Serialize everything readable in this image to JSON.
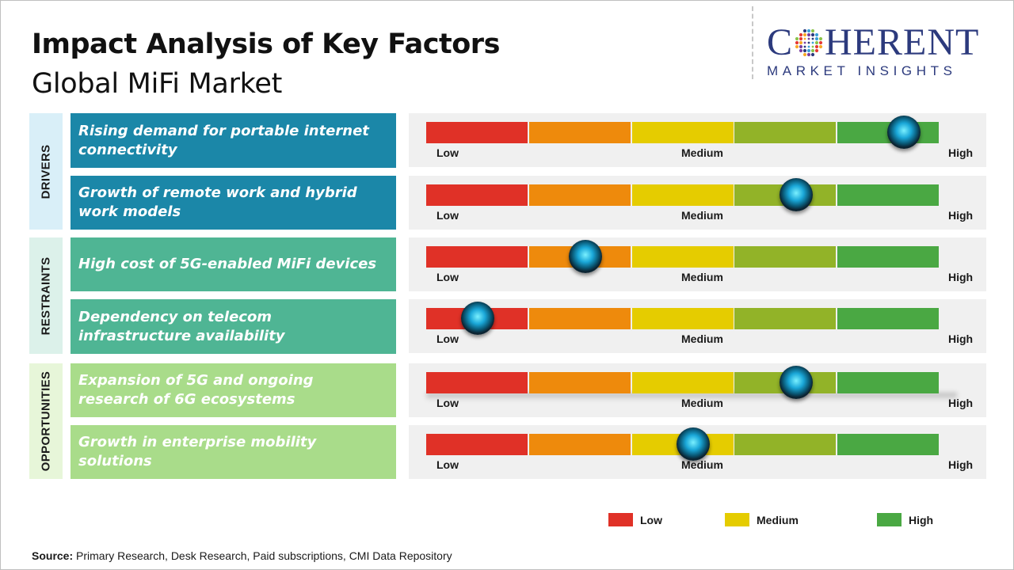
{
  "title": "Impact Analysis of Key Factors",
  "subtitle": "Global MiFi Market",
  "logo": {
    "main": "COHERENT",
    "sub": "MARKET INSIGHTS"
  },
  "colors": {
    "low": "#e03127",
    "low_medium": "#ee8a0c",
    "medium": "#e5cc00",
    "medium_high": "#92b328",
    "high": "#4aa843",
    "drivers_bg": "#1b87a8",
    "restraints_bg": "#4fb594",
    "opportunities_bg": "#a9dc8a",
    "drivers_label_bg": "#d9eff8",
    "restraints_label_bg": "#dcf1ea",
    "opportunities_label_bg": "#e7f6d9"
  },
  "scale_labels": {
    "low": "Low",
    "medium": "Medium",
    "high": "High"
  },
  "legend": [
    "Low",
    "Medium",
    "High"
  ],
  "source_label": "Source:",
  "source_text": " Primary Research, Desk Research, Paid subscriptions, CMI Data Repository",
  "chart_data": {
    "type": "table",
    "scale": [
      "Low",
      "Medium",
      "High"
    ],
    "categories": [
      {
        "name": "DRIVERS",
        "factors": [
          {
            "label": "Rising demand for portable internet connectivity",
            "impact": 0.93
          },
          {
            "label": "Growth of remote work and hybrid work models",
            "impact": 0.72
          }
        ]
      },
      {
        "name": "RESTRAINTS",
        "factors": [
          {
            "label": "High cost of 5G-enabled MiFi devices",
            "impact": 0.31
          },
          {
            "label": "Dependency on telecom infrastructure availability",
            "impact": 0.1
          }
        ]
      },
      {
        "name": "OPPORTUNITIES",
        "factors": [
          {
            "label": "Expansion of 5G and ongoing research of 6G ecosystems",
            "impact": 0.72
          },
          {
            "label": "Growth in enterprise mobility solutions",
            "impact": 0.52
          }
        ]
      }
    ]
  }
}
